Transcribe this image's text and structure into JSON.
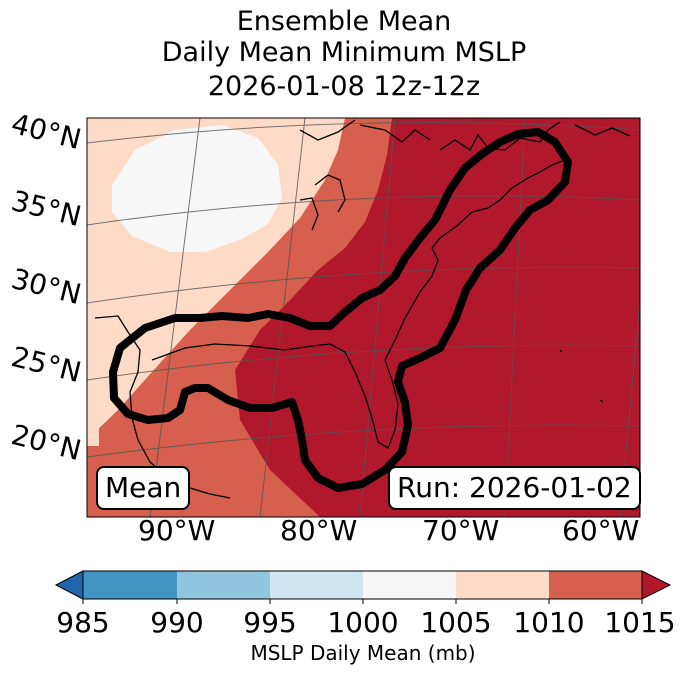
{
  "title": {
    "line1": "Ensemble Mean",
    "line2": "Daily Mean Minimum MSLP",
    "line3": "2026-01-08 12z-12z"
  },
  "map": {
    "lat_labels": [
      "40°N",
      "35°N",
      "30°N",
      "25°N",
      "20°N"
    ],
    "lon_labels": [
      "90°W",
      "80°W",
      "70°W",
      "60°W"
    ],
    "mean_box": "Mean",
    "run_box": "Run: 2026-01-02",
    "contour_color": "#000000"
  },
  "colorbar": {
    "label": "MSLP Daily Mean (mb)",
    "ticks": [
      "985",
      "990",
      "995",
      "1000",
      "1005",
      "1010",
      "1015"
    ],
    "colors": [
      "#2166ac",
      "#4393c3",
      "#92c5de",
      "#d1e5f0",
      "#f7f7f7",
      "#fddbc7",
      "#d6604d",
      "#b2182b"
    ]
  }
}
